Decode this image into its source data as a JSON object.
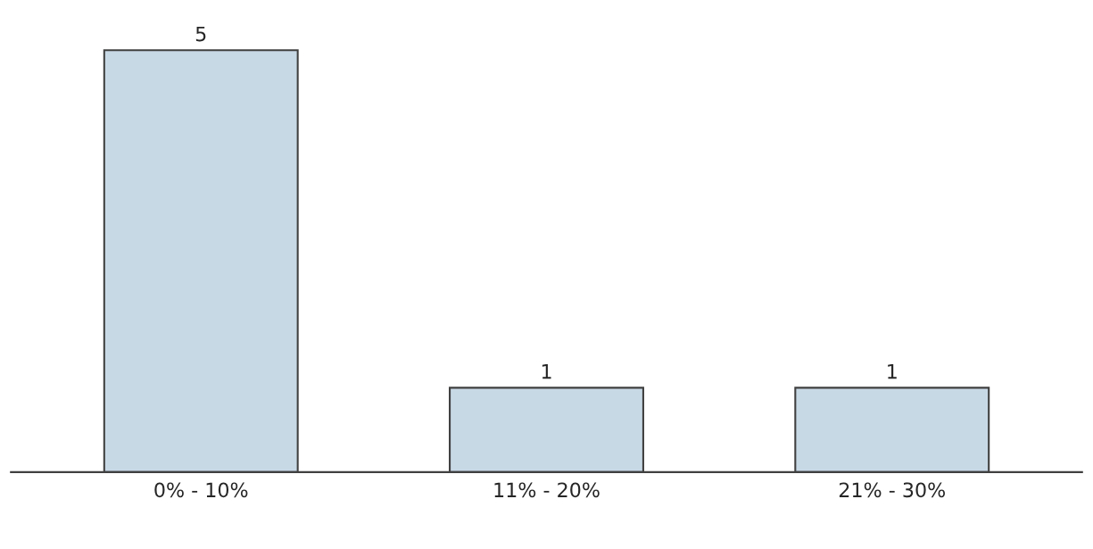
{
  "chart_data": {
    "type": "bar",
    "categories": [
      "0% - 10%",
      "11% - 20%",
      "21% - 30%"
    ],
    "values": [
      5,
      1,
      1
    ],
    "color": "#c8d9e6",
    "data_labels": true,
    "grid": false,
    "legend": false
  }
}
